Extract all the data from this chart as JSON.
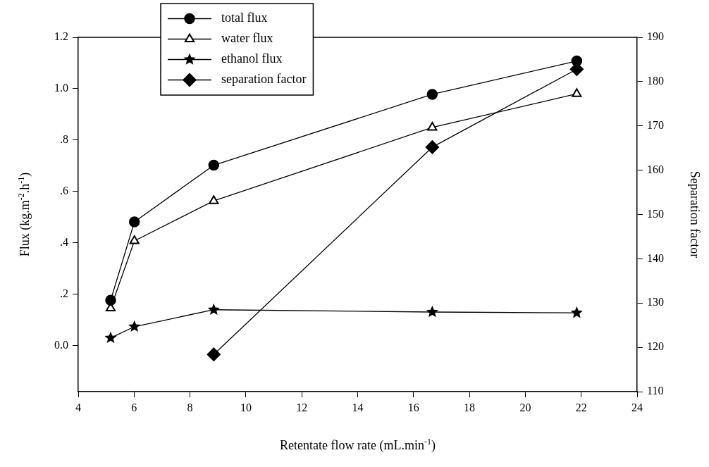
{
  "chart_data": {
    "type": "line",
    "xlabel": "Retentate flow rate (mL.min$^{-1}$)",
    "ylabel": "Flux (kg.m$^{-2}$.h$^{-1}$)",
    "y2label": "Separation factor",
    "xlim": [
      4,
      24
    ],
    "xticks": [
      4,
      6,
      8,
      10,
      12,
      14,
      16,
      18,
      20,
      22,
      24
    ],
    "ylim": [
      -0.18,
      1.2
    ],
    "yticks": [
      {
        "value": 0,
        "label": "0.0"
      },
      {
        "value": 0.2,
        "label": ".2"
      },
      {
        "value": 0.4,
        "label": ".4"
      },
      {
        "value": 0.6,
        "label": ".6"
      },
      {
        "value": 0.8,
        "label": ".8"
      },
      {
        "value": 1.0,
        "label": "1.0"
      },
      {
        "value": 1.2,
        "label": "1.2"
      }
    ],
    "y2lim": [
      110,
      190
    ],
    "y2ticks": [
      110,
      120,
      130,
      140,
      150,
      160,
      170,
      180,
      190
    ],
    "x": [
      5.16,
      6.01,
      8.85,
      16.67,
      21.84
    ],
    "series": [
      {
        "name": "total flux",
        "color": "#000000",
        "marker": "circle",
        "values": [
          0.176,
          0.481,
          0.702,
          0.978,
          1.108
        ]
      },
      {
        "name": "water flux",
        "color": "#000000",
        "marker": "triangle",
        "values": [
          0.145,
          0.407,
          0.563,
          0.849,
          0.98
        ]
      },
      {
        "name": "ethanol flux",
        "color": "#000000",
        "marker": "star",
        "values": [
          0.029,
          0.073,
          0.139,
          0.13,
          0.127
        ]
      },
      {
        "name": "separation factor",
        "color": "#000000",
        "marker": "diamond",
        "axis": "y2",
        "x": [
          8.85,
          16.67,
          21.84
        ],
        "values": [
          118.4,
          165.2,
          182.8
        ]
      }
    ],
    "legend": "top left",
    "grid": false,
    "line_style": "solid"
  }
}
